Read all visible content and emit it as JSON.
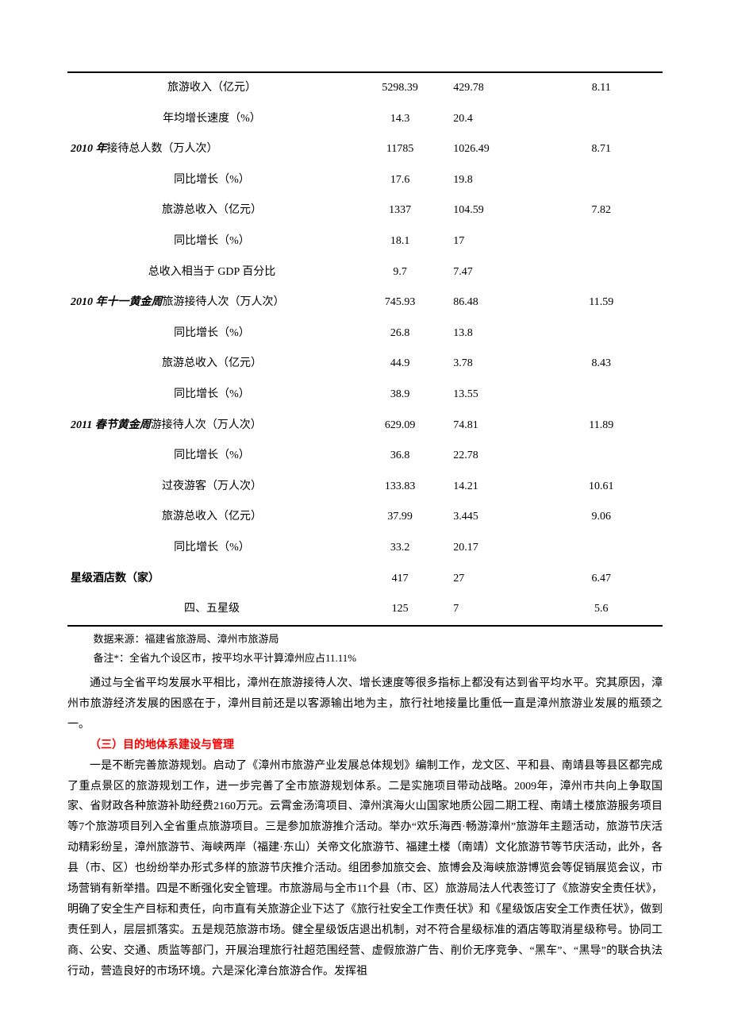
{
  "table": {
    "rows": [
      {
        "label": "旅游收入（亿元）",
        "c2": "5298.39",
        "c3": "429.78",
        "c4": "8.11",
        "bold": false,
        "italic": false
      },
      {
        "label": "年均增长速度（%）",
        "c2": "14.3",
        "c3": "20.4",
        "c4": "",
        "bold": false,
        "italic": false
      },
      {
        "label_prefix": "2010 年",
        "label_rest": "接待总人数（万人次）",
        "c2": "11785",
        "c3": "1026.49",
        "c4": "8.71",
        "bold": true,
        "italic": true,
        "align_left": true
      },
      {
        "label": "同比增长（%）",
        "c2": "17.6",
        "c3": "19.8",
        "c4": "",
        "bold": false,
        "italic": false
      },
      {
        "label": "旅游总收入（亿元）",
        "c2": "1337",
        "c3": "104.59",
        "c4": "7.82",
        "bold": false,
        "italic": false
      },
      {
        "label": "同比增长（%）",
        "c2": "18.1",
        "c3": "17",
        "c4": "",
        "bold": false,
        "italic": false
      },
      {
        "label": "总收入相当于 GDP 百分比",
        "c2": "9.7",
        "c3": "7.47",
        "c4": "",
        "bold": false,
        "italic": false
      },
      {
        "label_prefix": "2010 年十一黄金周",
        "label_rest": "旅游接待人次（万人次）",
        "c2": "745.93",
        "c3": "86.48",
        "c4": "11.59",
        "bold": true,
        "italic": true,
        "align_left": true
      },
      {
        "label": "同比增长（%）",
        "c2": "26.8",
        "c3": "13.8",
        "c4": "",
        "bold": false,
        "italic": false
      },
      {
        "label": "旅游总收入（亿元）",
        "c2": "44.9",
        "c3": "3.78",
        "c4": "8.43",
        "bold": false,
        "italic": false
      },
      {
        "label": "同比增长（%）",
        "c2": "38.9",
        "c3": "13.55",
        "c4": "",
        "bold": false,
        "italic": false
      },
      {
        "label_prefix": "2011 春节黄金周",
        "label_rest": "游接待人次（万人次）",
        "c2": "629.09",
        "c3": "74.81",
        "c4": "11.89",
        "bold": true,
        "italic": true,
        "align_left": true
      },
      {
        "label": "同比增长（%）",
        "c2": "36.8",
        "c3": "22.78",
        "c4": "",
        "bold": false,
        "italic": false
      },
      {
        "label": "过夜游客（万人次）",
        "c2": "133.83",
        "c3": "14.21",
        "c4": "10.61",
        "bold": false,
        "italic": false
      },
      {
        "label": "旅游总收入（亿元）",
        "c2": "37.99",
        "c3": "3.445",
        "c4": "9.06",
        "bold": false,
        "italic": false
      },
      {
        "label": "同比增长（%）",
        "c2": "33.2",
        "c3": "20.17",
        "c4": "",
        "bold": false,
        "italic": false
      },
      {
        "label": "星级酒店数（家）",
        "c2": "417",
        "c3": "27",
        "c4": "6.47",
        "bold": true,
        "italic": false,
        "align_left": true
      },
      {
        "label": "四、五星级",
        "c2": "125",
        "c3": "7",
        "c4": "5.6",
        "bold": false,
        "italic": false
      }
    ]
  },
  "source": "数据来源：福建省旅游局、漳州市旅游局",
  "note": "备注*：全省九个设区市，按平均水平计算漳州应占11.11%",
  "para1": "通过与全省平均发展水平相比，漳州在旅游接待人次、增长速度等很多指标上都没有达到省平均水平。究其原因，漳州市旅游经济发展的困惑在于，漳州目前还是以客源输出地为主，旅行社地接量比重低一直是漳州旅游业发展的瓶颈之一。",
  "heading": "（三）目的地体系建设与管理",
  "para2": "一是不断完善旅游规划。启动了《漳州市旅游产业发展总体规划》编制工作，龙文区、平和县、南靖县等县区都完成了重点景区的旅游规划工作，进一步完善了全市旅游规划体系。二是实施项目带动战略。2009年，漳州市共向上争取国家、省财政各种旅游补助经费2160万元。云霄金汤湾项目、漳州滨海火山国家地质公园二期工程、南靖土楼旅游服务项目等7个旅游项目列入全省重点旅游项目。三是参加旅游推介活动。举办“欢乐海西·畅游漳州”旅游年主题活动，旅游节庆活动精彩纷呈，漳州旅游节、海峡两岸（福建·东山）关帝文化旅游节、福建土楼（南靖）文化旅游节等节庆活动，此外，各县（市、区）也纷纷举办形式多样的旅游节庆推介活动。组团参加旅交会、旅博会及海峡旅游博览会等促销展览会议，市场营销有新举措。四是不断强化安全管理。市旅游局与全市11个县（市、区）旅游局法人代表签订了《旅游安全责任状》，明确了安全生产目标和责任，向市直有关旅游企业下达了《旅行社安全工作责任状》和《星级饭店安全工作责任状》，做到责任到人，层层抓落实。五是规范旅游市场。健全星级饭店退出机制，对不符合星级标准的酒店等取消星级称号。协同工商、公安、交通、质监等部门，开展治理旅行社超范围经营、虚假旅游广告、削价无序竞争、“黑车”、“黑导”的联合执法行动，营造良好的市场环境。六是深化漳台旅游合作。发挥祖"
}
